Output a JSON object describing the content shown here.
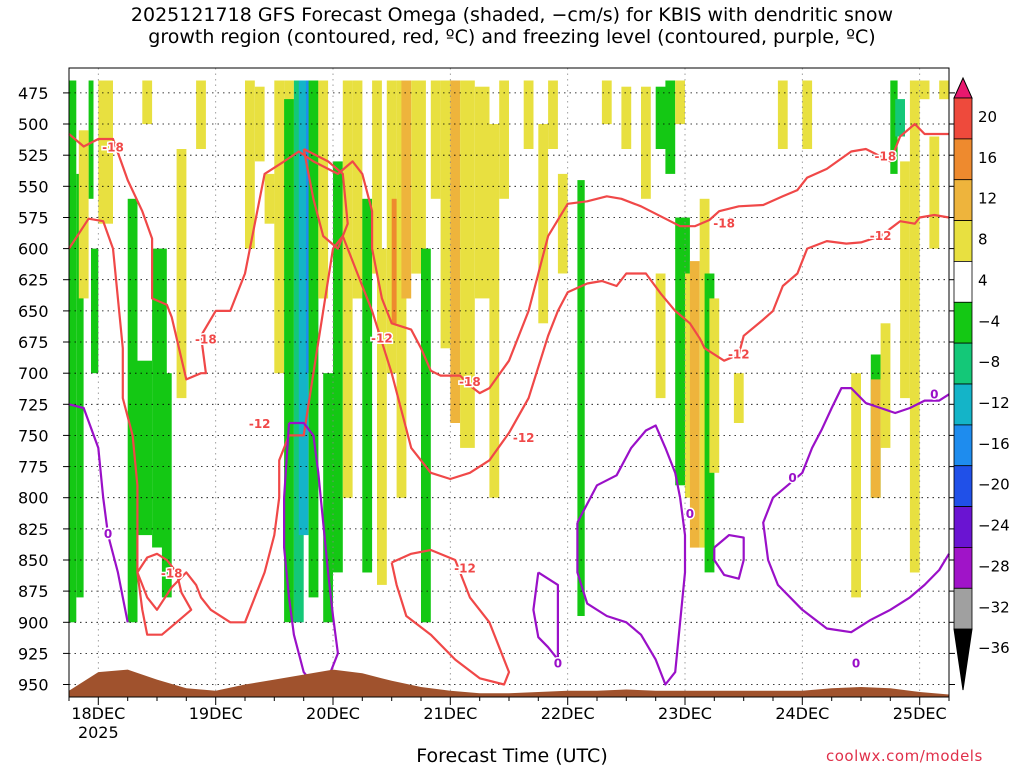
{
  "chart_data": {
    "type": "heatmap",
    "title_line1": "2025121718 GFS Forecast Omega (shaded, −cm/s) for KBIS with dendritic snow",
    "title_line2": "growth region (contoured, red, ºC) and freezing level (contoured, purple, ºC)",
    "xlabel": "Forecast Time (UTC)",
    "credit": "coolwx.com/models",
    "x_ticks": [
      "18DEC",
      "19DEC",
      "20DEC",
      "21DEC",
      "22DEC",
      "23DEC",
      "24DEC",
      "25DEC"
    ],
    "x_tick_hours": [
      6,
      30,
      54,
      78,
      102,
      126,
      150,
      174
    ],
    "x_range_hours": [
      0,
      180
    ],
    "year_label": "2025",
    "y_ticks": [
      475,
      500,
      525,
      550,
      575,
      600,
      625,
      650,
      675,
      700,
      725,
      750,
      775,
      800,
      825,
      850,
      875,
      900,
      925,
      950
    ],
    "y_range": [
      455,
      960
    ],
    "colorbar": {
      "labels": [
        "20",
        "16",
        "12",
        "8",
        "4",
        "−4",
        "−8",
        "−12",
        "−16",
        "−20",
        "−24",
        "−28",
        "−32",
        "−36"
      ],
      "colors": [
        "#e8186e",
        "#ee4a3c",
        "#ee8a2e",
        "#eeb43c",
        "#e8e040",
        "#ffffff",
        "#14c814",
        "#14c878",
        "#14b4c8",
        "#1e8cee",
        "#2050e8",
        "#6a14d2",
        "#a014c8",
        "#a0a0a0",
        "#000000"
      ]
    },
    "series": [
      {
        "name": "omega_shading",
        "units": "-cm/s"
      },
      {
        "name": "dendritic_growth_isotherms",
        "color": "#f04848",
        "levels": [
          "-12",
          "-18"
        ]
      },
      {
        "name": "freezing_level",
        "color": "#9a10c8",
        "levels": [
          "0"
        ]
      }
    ],
    "contour_labels": [
      {
        "text": "-18",
        "t": 9,
        "p": 519
      },
      {
        "text": "-18",
        "t": 28,
        "p": 673
      },
      {
        "text": "-12",
        "t": 39,
        "p": 741
      },
      {
        "text": "-12",
        "t": 64,
        "p": 672
      },
      {
        "text": "-18",
        "t": 82,
        "p": 707
      },
      {
        "text": "-12",
        "t": 93,
        "p": 752
      },
      {
        "text": "-12",
        "t": 81,
        "p": 857
      },
      {
        "text": "-18",
        "t": 21,
        "p": 861
      },
      {
        "text": "-18",
        "t": 134,
        "p": 580
      },
      {
        "text": "-12",
        "t": 137,
        "p": 685
      },
      {
        "text": "-18",
        "t": 167,
        "p": 526
      },
      {
        "text": "-12",
        "t": 166,
        "p": 590
      },
      {
        "text": "0",
        "t": 8,
        "p": 829
      },
      {
        "text": "0",
        "t": 100,
        "p": 933
      },
      {
        "text": "0",
        "t": 127,
        "p": 813
      },
      {
        "text": "0",
        "t": 148,
        "p": 784
      },
      {
        "text": "0",
        "t": 161,
        "p": 933
      },
      {
        "text": "0",
        "t": 177,
        "p": 717
      }
    ],
    "surface": {
      "color": "#a0522d",
      "hours": [
        0,
        6,
        12,
        18,
        24,
        30,
        36,
        42,
        48,
        54,
        60,
        66,
        72,
        78,
        84,
        90,
        96,
        102,
        108,
        114,
        120,
        126,
        132,
        138,
        144,
        150,
        156,
        162,
        168,
        174,
        180
      ],
      "pressure": [
        955,
        940,
        938,
        946,
        953,
        955,
        950,
        946,
        942,
        938,
        941,
        947,
        952,
        955,
        957,
        957,
        956,
        955,
        955,
        954,
        955,
        955,
        955,
        955,
        955,
        955,
        953,
        952,
        953,
        956,
        958
      ]
    }
  }
}
